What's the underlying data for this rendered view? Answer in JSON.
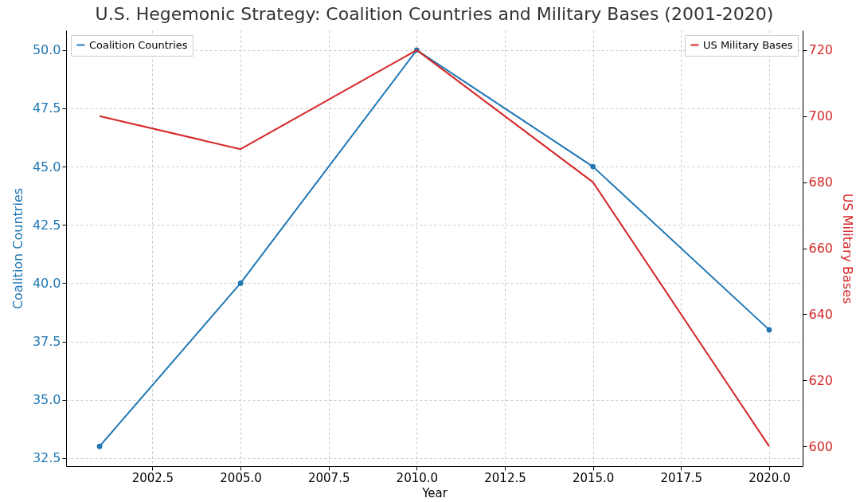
{
  "chart_data": {
    "type": "line",
    "title": "U.S. Hegemonic Strategy: Coalition Countries and Military Bases (2001-2020)",
    "xlabel": "Year",
    "ylabel": "Coalition Countries",
    "y2label": "US Military Bases",
    "x": [
      2001,
      2005,
      2010,
      2015,
      2020
    ],
    "series": [
      {
        "name": "Coalition Countries",
        "color": "#1f77b4",
        "marker": "circle",
        "values": [
          33,
          40,
          50,
          45,
          38
        ]
      },
      {
        "name": "US Military Bases",
        "color": "#d62728",
        "axis": "y2",
        "values": [
          700,
          690,
          720,
          680,
          600
        ]
      }
    ],
    "xlim": [
      2000.05,
      2020.95
    ],
    "xticks": [
      {
        "value": 2002.5,
        "label": "2002.5"
      },
      {
        "value": 2005,
        "label": "2005.0"
      },
      {
        "value": 2007.5,
        "label": "2007.5"
      },
      {
        "value": 2010,
        "label": "2010.0"
      },
      {
        "value": 2012.5,
        "label": "2012.5"
      },
      {
        "value": 2015,
        "label": "2015.0"
      },
      {
        "value": 2017.5,
        "label": "2017.5"
      },
      {
        "value": 2020,
        "label": "2020.0"
      }
    ],
    "ylim": [
      32.15,
      50.85
    ],
    "yticks": [
      32.5,
      {
        "value": 35,
        "label": "35.0"
      },
      37.5,
      {
        "value": 40,
        "label": "40.0"
      },
      42.5,
      {
        "value": 45,
        "label": "45.0"
      },
      47.5,
      {
        "value": 50,
        "label": "50.0"
      }
    ],
    "y2lim": [
      594,
      726
    ],
    "y2ticks": [
      600,
      620,
      640,
      660,
      680,
      700,
      720
    ],
    "grid": true,
    "legend": "top left"
  }
}
